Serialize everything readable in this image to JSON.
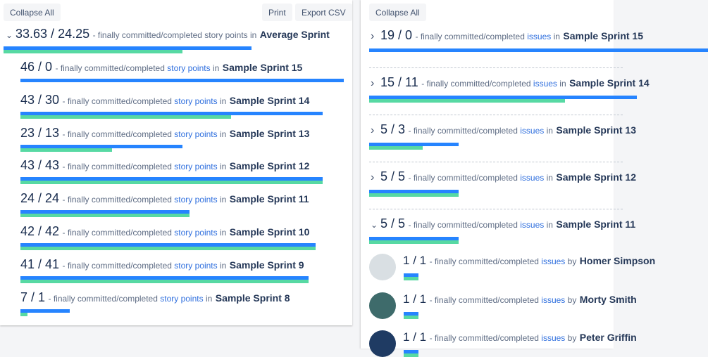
{
  "left": {
    "collapse_label": "Collapse All",
    "print_label": "Print",
    "export_label": "Export CSV",
    "average": {
      "committed": "33.63",
      "completed": "24.25",
      "desc": "- finally committed/completed story points in",
      "name": "Average Sprint",
      "c": 33.63,
      "d": 24.25,
      "expanded": true
    },
    "unit": "story points",
    "mid": "- finally committed/completed",
    "in": "in",
    "sprints": [
      {
        "committed": "46",
        "completed": "0",
        "name": "Sample Sprint 15",
        "c": 46,
        "d": 0
      },
      {
        "committed": "43",
        "completed": "30",
        "name": "Sample Sprint 14",
        "c": 43,
        "d": 30
      },
      {
        "committed": "23",
        "completed": "13",
        "name": "Sample Sprint 13",
        "c": 23,
        "d": 13
      },
      {
        "committed": "43",
        "completed": "43",
        "name": "Sample Sprint 12",
        "c": 43,
        "d": 43
      },
      {
        "committed": "24",
        "completed": "24",
        "name": "Sample Sprint 11",
        "c": 24,
        "d": 24
      },
      {
        "committed": "42",
        "completed": "42",
        "name": "Sample Sprint 10",
        "c": 42,
        "d": 42
      },
      {
        "committed": "41",
        "completed": "41",
        "name": "Sample Sprint 9",
        "c": 41,
        "d": 41
      },
      {
        "committed": "7",
        "completed": "1",
        "name": "Sample Sprint 8",
        "c": 7,
        "d": 1
      }
    ]
  },
  "right": {
    "collapse_label": "Collapse All",
    "unit": "issues",
    "mid": "- finally committed/completed",
    "in": "in",
    "by": "by",
    "sprints": [
      {
        "committed": "19",
        "completed": "0",
        "name": "Sample Sprint 15",
        "c": 19,
        "d": 0,
        "expanded": false
      },
      {
        "committed": "15",
        "completed": "11",
        "name": "Sample Sprint 14",
        "c": 15,
        "d": 11,
        "expanded": false
      },
      {
        "committed": "5",
        "completed": "3",
        "name": "Sample Sprint 13",
        "c": 5,
        "d": 3,
        "expanded": false
      },
      {
        "committed": "5",
        "completed": "5",
        "name": "Sample Sprint 12",
        "c": 5,
        "d": 5,
        "expanded": false
      },
      {
        "committed": "5",
        "completed": "5",
        "name": "Sample Sprint 11",
        "c": 5,
        "d": 5,
        "expanded": true
      }
    ],
    "users": [
      {
        "committed": "1",
        "completed": "1",
        "name": "Homer Simpson",
        "c": 1,
        "d": 1,
        "avatar_color": "#d9dfe3"
      },
      {
        "committed": "1",
        "completed": "1",
        "name": "Morty Smith",
        "c": 1,
        "d": 1,
        "avatar_color": "#3e6b6b"
      },
      {
        "committed": "1",
        "completed": "1",
        "name": "Peter Griffin",
        "c": 1,
        "d": 1,
        "avatar_color": "#1f3b63"
      }
    ]
  },
  "colors": {
    "committed": "#2684ff",
    "completed": "#57d9a3",
    "link": "#2f6fde"
  }
}
